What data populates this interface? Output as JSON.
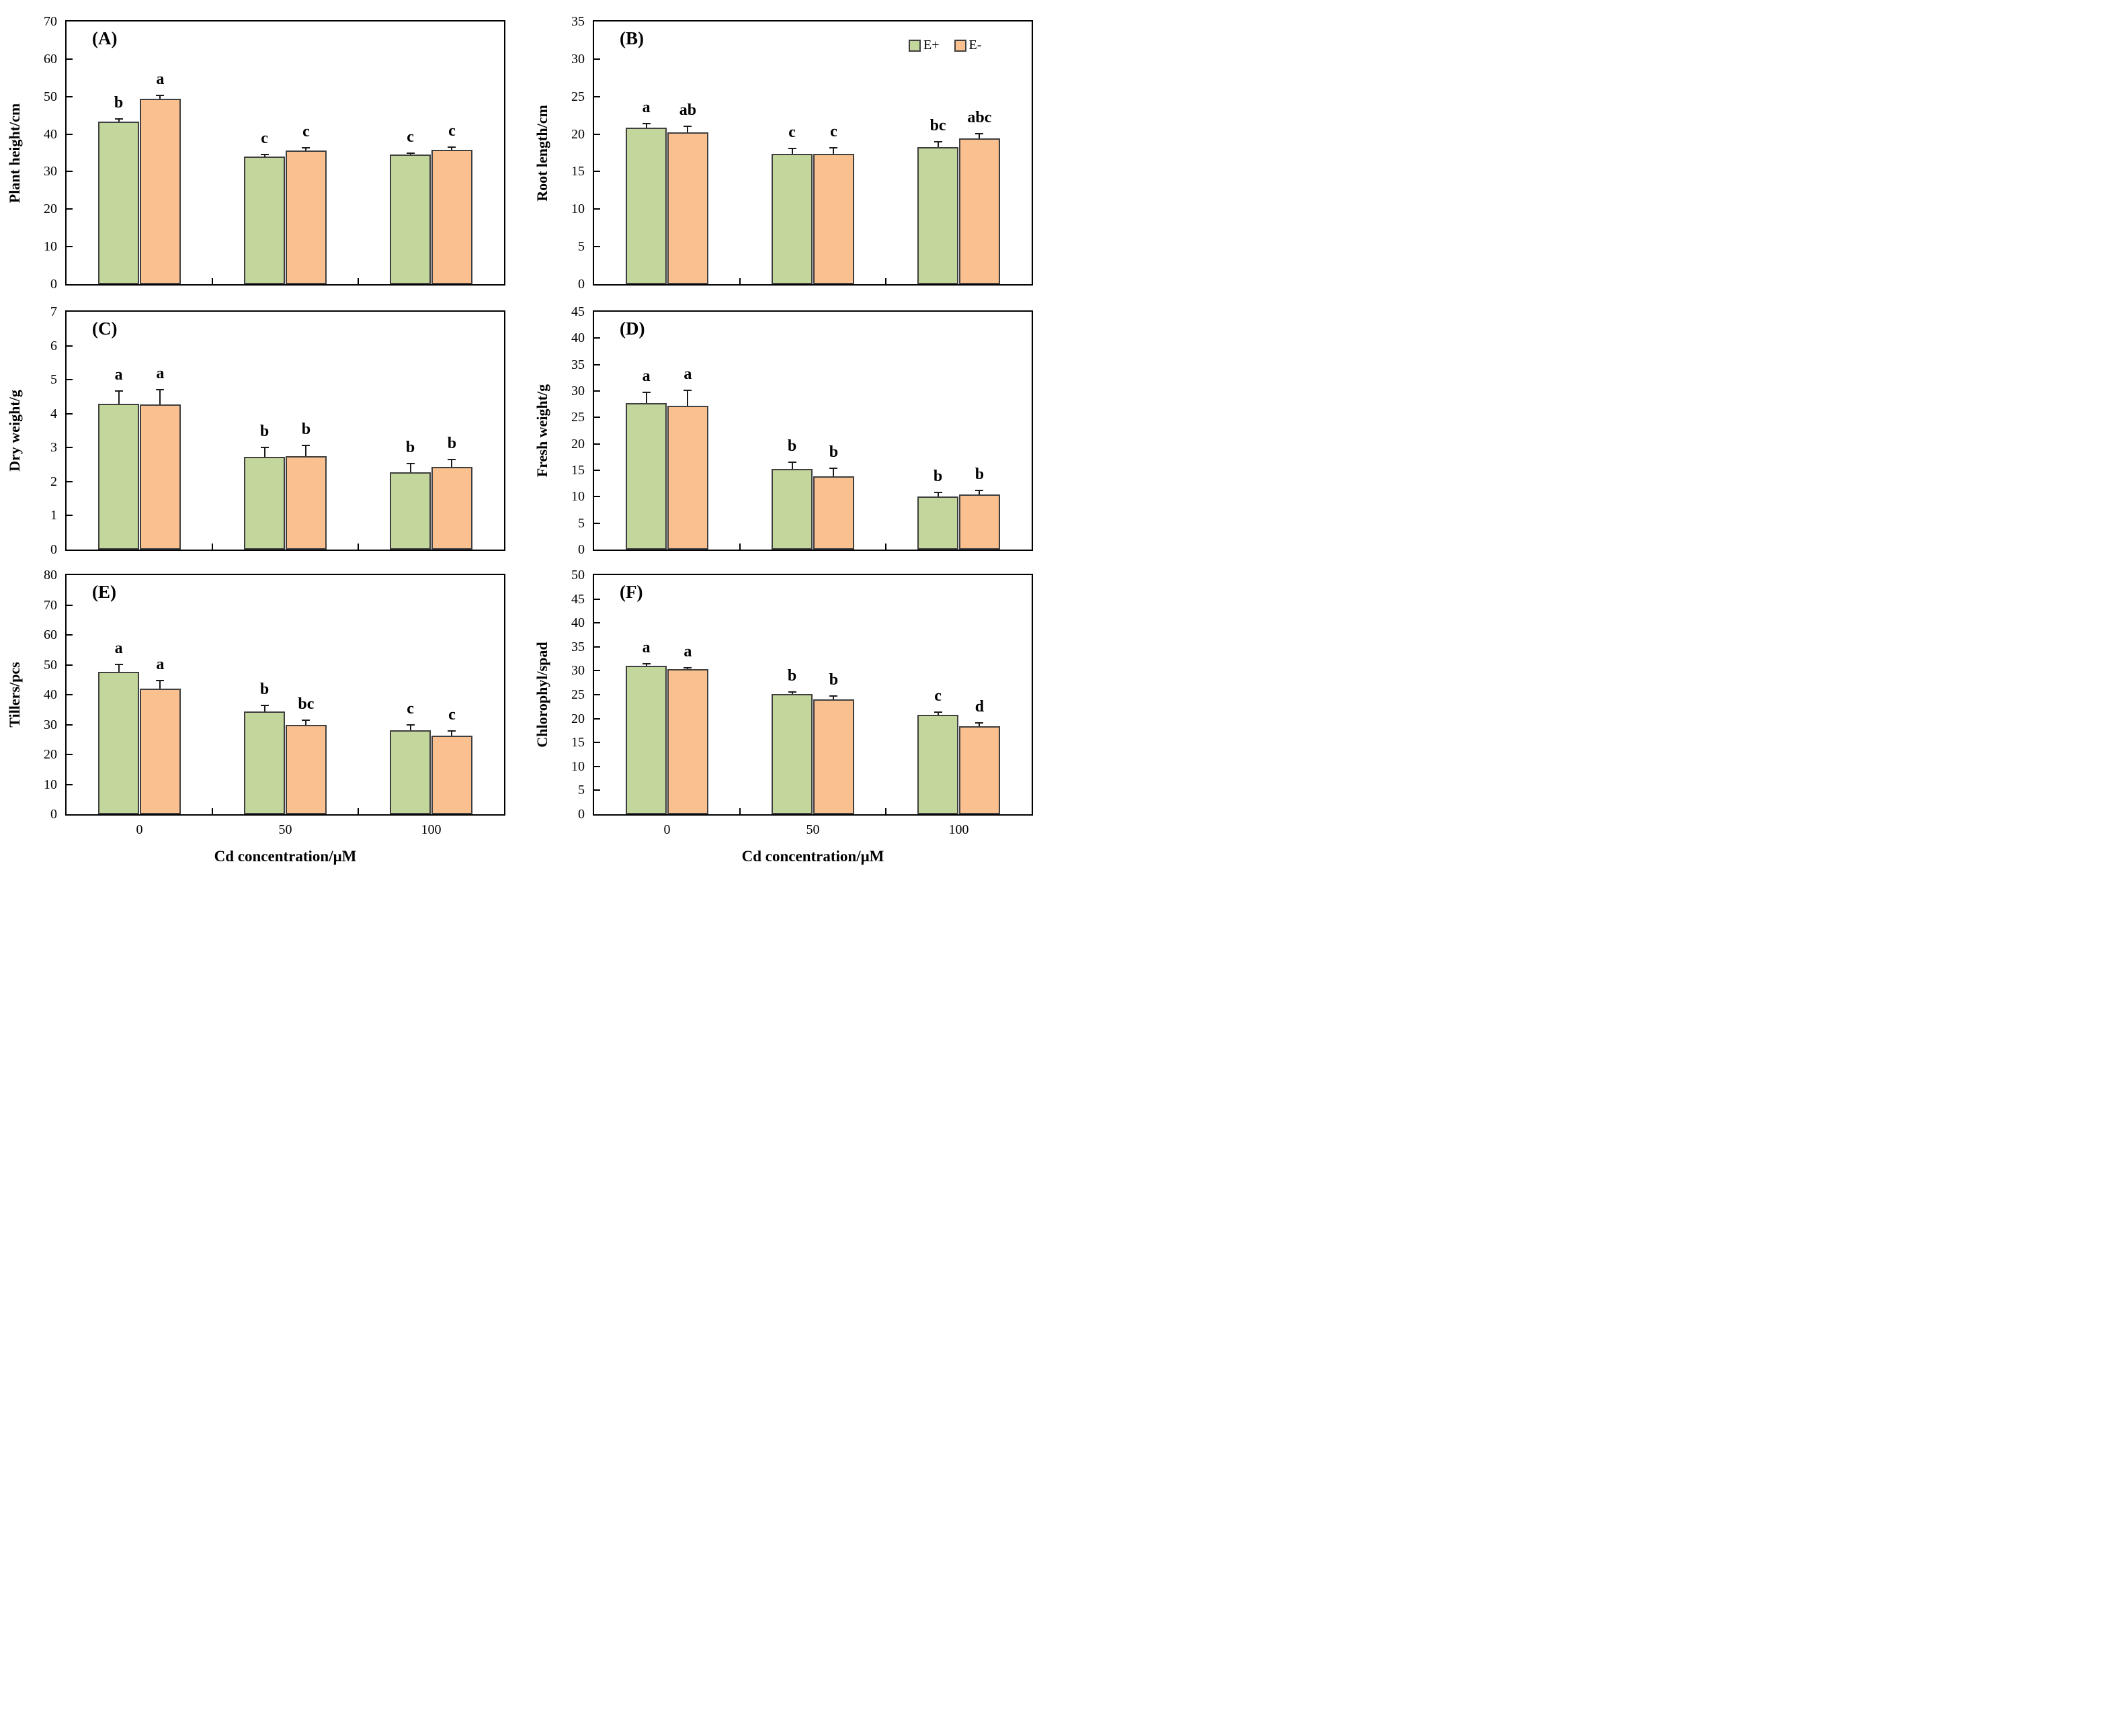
{
  "figure": {
    "x_axis_title": "Cd concentration/μM",
    "series_colors": {
      "E+": "#c3d69b",
      "E-": "#fac08f"
    },
    "legend": {
      "labels": [
        "E+",
        "E-"
      ],
      "position": "top-right-of-panel-B"
    }
  },
  "chart_data": [
    {
      "type": "bar",
      "panel_letter": "(A)",
      "ylabel": "Plant height/cm",
      "ylim": [
        0,
        70
      ],
      "ytick_step": 10,
      "categories": [
        "0",
        "50",
        "100"
      ],
      "show_x_labels": false,
      "show_legend": false,
      "series": [
        {
          "name": "E+",
          "color": "#c3d69b",
          "values": [
            43.4,
            34.0,
            34.5
          ],
          "errors": [
            0.8,
            0.7,
            0.6
          ],
          "letters": [
            "b",
            "c",
            "c"
          ]
        },
        {
          "name": "E-",
          "color": "#fac08f",
          "values": [
            49.4,
            35.6,
            35.8
          ],
          "errors": [
            1.1,
            0.9,
            0.9
          ],
          "letters": [
            "a",
            "c",
            "c"
          ]
        }
      ]
    },
    {
      "type": "bar",
      "panel_letter": "(B)",
      "ylabel": "Root length/cm",
      "ylim": [
        0,
        35
      ],
      "ytick_step": 5,
      "categories": [
        "0",
        "50",
        "100"
      ],
      "show_x_labels": false,
      "show_legend": true,
      "series": [
        {
          "name": "E+",
          "color": "#c3d69b",
          "values": [
            20.9,
            17.4,
            18.3
          ],
          "errors": [
            0.6,
            0.8,
            0.8
          ],
          "letters": [
            "a",
            "c",
            "bc"
          ]
        },
        {
          "name": "E-",
          "color": "#fac08f",
          "values": [
            20.2,
            17.4,
            19.4
          ],
          "errors": [
            0.9,
            0.9,
            0.7
          ],
          "letters": [
            "ab",
            "c",
            "abc"
          ]
        }
      ]
    },
    {
      "type": "bar",
      "panel_letter": "(C)",
      "ylabel": "Dry weight/g",
      "ylim": [
        0,
        7
      ],
      "ytick_step": 1,
      "categories": [
        "0",
        "50",
        "100"
      ],
      "show_x_labels": false,
      "show_legend": false,
      "series": [
        {
          "name": "E+",
          "color": "#c3d69b",
          "values": [
            4.29,
            2.72,
            2.28
          ],
          "errors": [
            0.39,
            0.3,
            0.28
          ],
          "letters": [
            "a",
            "b",
            "b"
          ]
        },
        {
          "name": "E-",
          "color": "#fac08f",
          "values": [
            4.27,
            2.75,
            2.44
          ],
          "errors": [
            0.45,
            0.33,
            0.22
          ],
          "letters": [
            "a",
            "b",
            "b"
          ]
        }
      ]
    },
    {
      "type": "bar",
      "panel_letter": "(D)",
      "ylabel": "Fresh weight/g",
      "ylim": [
        0,
        45
      ],
      "ytick_step": 5,
      "categories": [
        "0",
        "50",
        "100"
      ],
      "show_x_labels": false,
      "show_legend": false,
      "series": [
        {
          "name": "E+",
          "color": "#c3d69b",
          "values": [
            27.7,
            15.2,
            10.0
          ],
          "errors": [
            2.2,
            1.5,
            0.9
          ],
          "letters": [
            "a",
            "b",
            "b"
          ]
        },
        {
          "name": "E-",
          "color": "#fac08f",
          "values": [
            27.2,
            13.8,
            10.4
          ],
          "errors": [
            3.0,
            1.7,
            0.9
          ],
          "letters": [
            "a",
            "b",
            "b"
          ]
        }
      ]
    },
    {
      "type": "bar",
      "panel_letter": "(E)",
      "ylabel": "Tillers/pcs",
      "ylim": [
        0,
        80
      ],
      "ytick_step": 10,
      "categories": [
        "0",
        "50",
        "100"
      ],
      "xlabel": "Cd concentration/μM",
      "show_x_labels": true,
      "show_legend": false,
      "series": [
        {
          "name": "E+",
          "color": "#c3d69b",
          "values": [
            47.7,
            34.3,
            28.1
          ],
          "errors": [
            2.7,
            2.4,
            2.1
          ],
          "letters": [
            "a",
            "b",
            "c"
          ]
        },
        {
          "name": "E-",
          "color": "#fac08f",
          "values": [
            42.0,
            29.8,
            26.2
          ],
          "errors": [
            3.0,
            1.8,
            1.8
          ],
          "letters": [
            "a",
            "bc",
            "c"
          ]
        }
      ]
    },
    {
      "type": "bar",
      "panel_letter": "(F)",
      "ylabel": "Chlorophyl/spad",
      "ylim": [
        0,
        50
      ],
      "ytick_step": 5,
      "categories": [
        "0",
        "50",
        "100"
      ],
      "xlabel": "Cd concentration/μM",
      "show_x_labels": true,
      "show_legend": false,
      "series": [
        {
          "name": "E+",
          "color": "#c3d69b",
          "values": [
            31.1,
            25.2,
            20.8
          ],
          "errors": [
            0.5,
            0.5,
            0.75
          ],
          "letters": [
            "a",
            "b",
            "c"
          ]
        },
        {
          "name": "E-",
          "color": "#fac08f",
          "values": [
            30.3,
            24.0,
            18.4
          ],
          "errors": [
            0.5,
            0.85,
            0.8
          ],
          "letters": [
            "a",
            "b",
            "d"
          ]
        }
      ]
    }
  ]
}
